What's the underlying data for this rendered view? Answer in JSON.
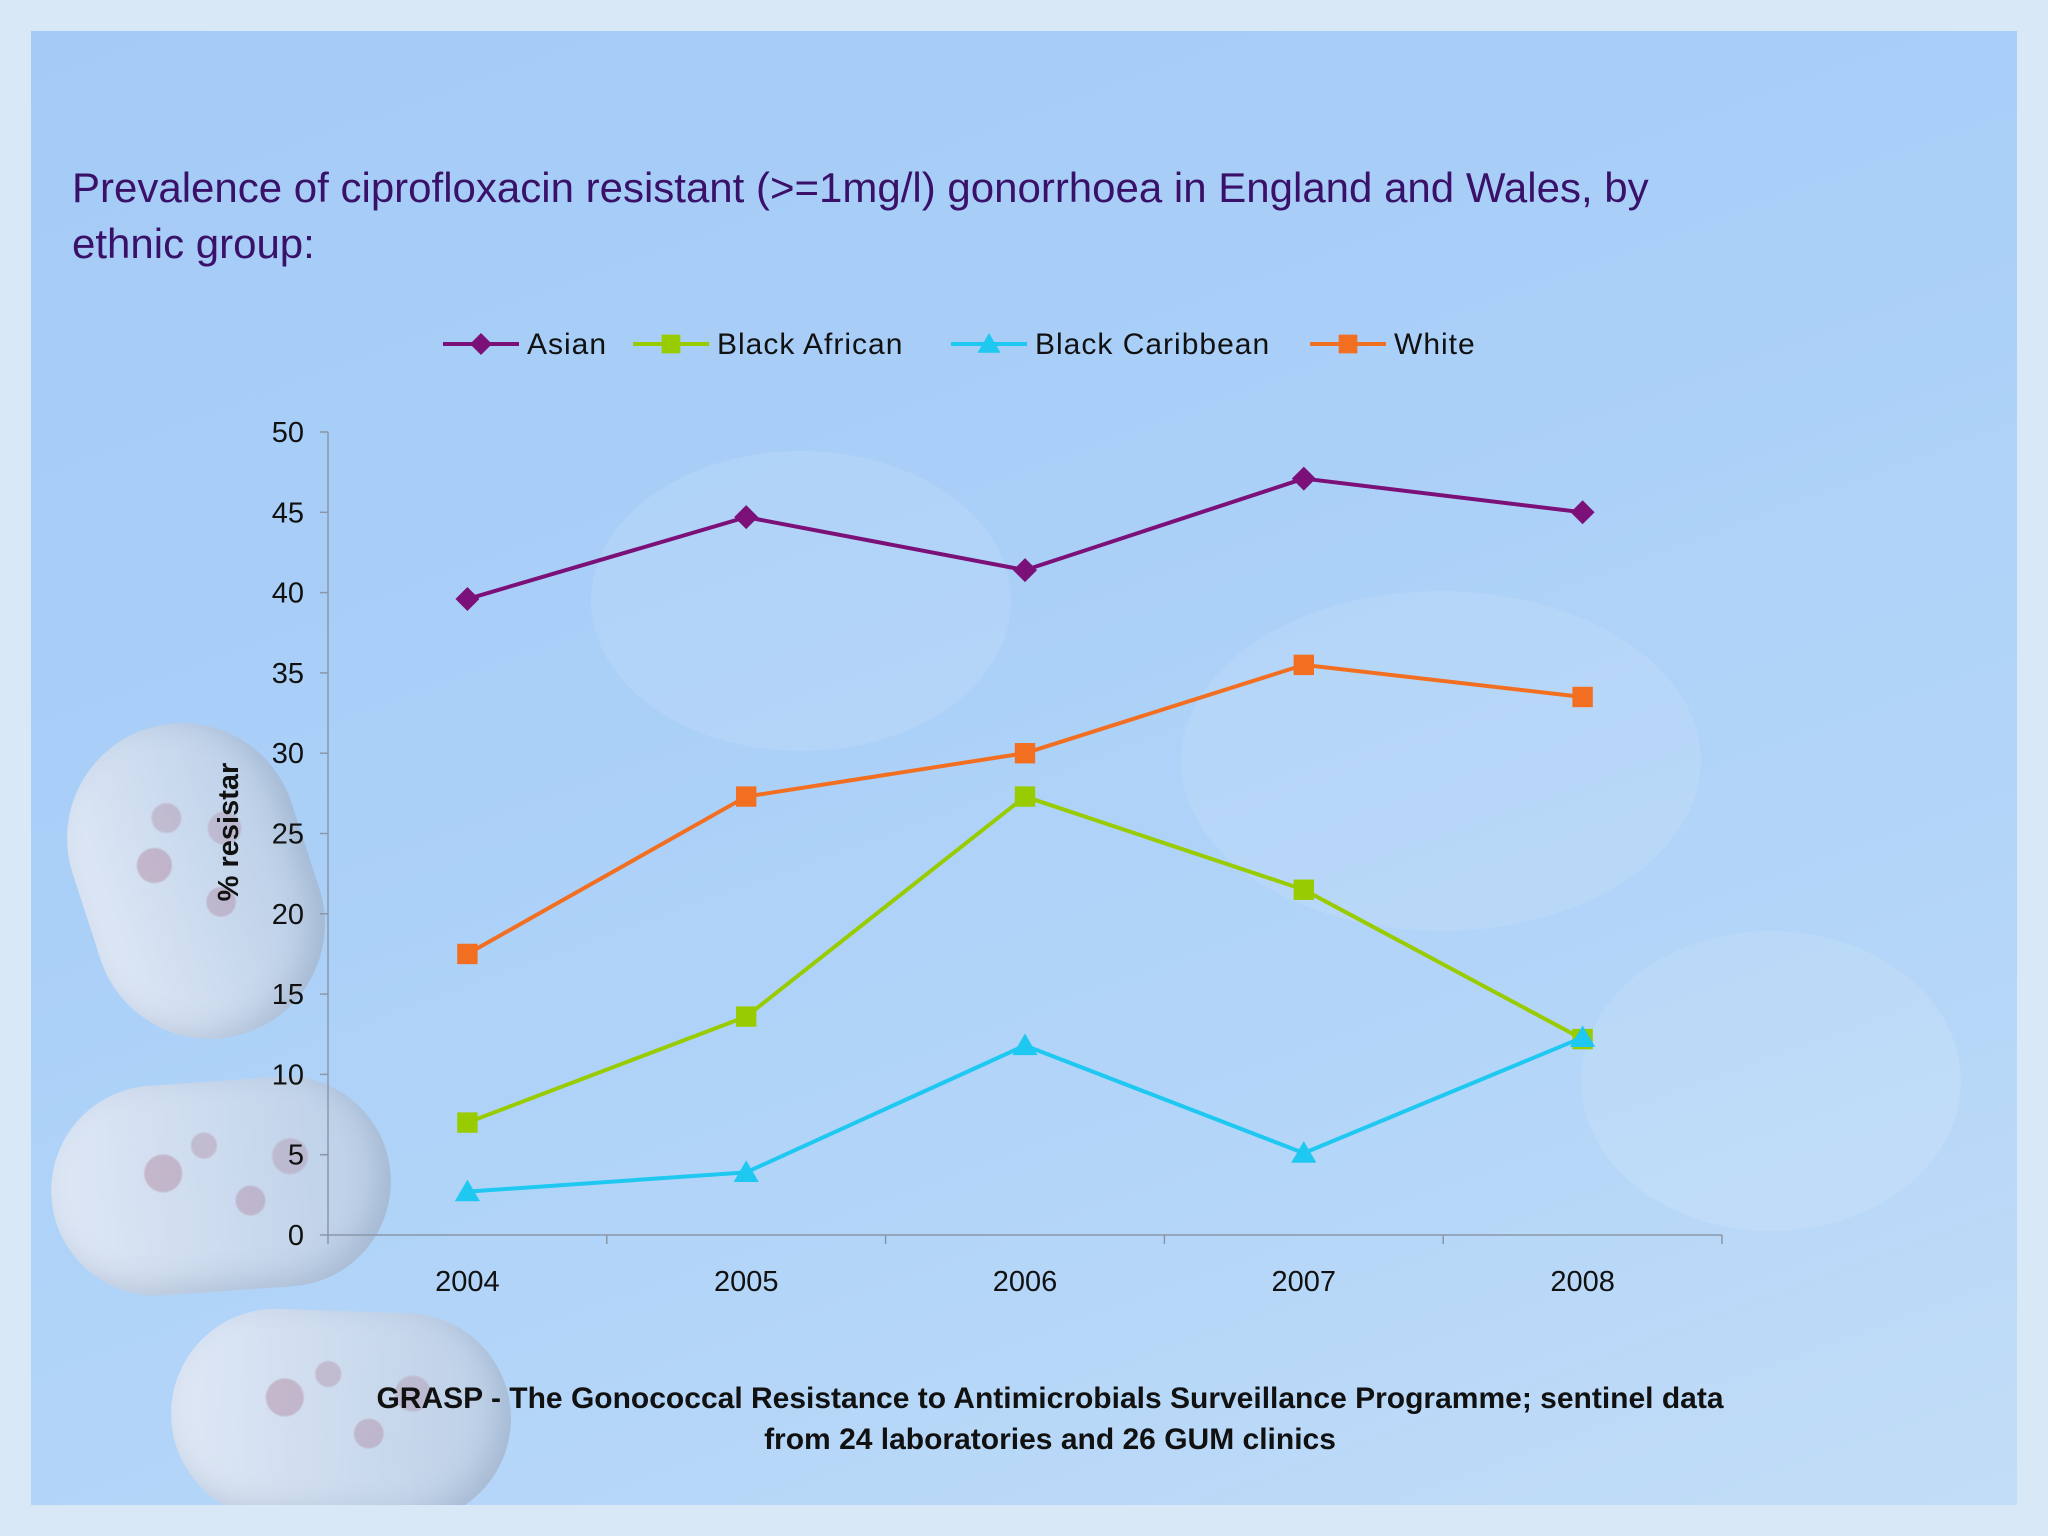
{
  "title": "Prevalence of ciprofloxacin resistant (>=1mg/l) gonorrhoea in England and Wales, by ethnic group:",
  "footer": {
    "line1": "GRASP - The Gonococcal Resistance to Antimicrobials Surveillance Programme; sentinel data",
    "line2": "from 24 laboratories and 26 GUM clinics"
  },
  "chart_data": {
    "type": "line",
    "title": "",
    "xlabel": "",
    "ylabel": "% resistar",
    "categories": [
      "2004",
      "2005",
      "2006",
      "2007",
      "2008"
    ],
    "ylim": [
      0,
      50
    ],
    "yticks": [
      0,
      5,
      10,
      15,
      20,
      25,
      30,
      35,
      40,
      45,
      50
    ],
    "grid": false,
    "legend": "top",
    "series": [
      {
        "name": "Asian",
        "values": [
          39.6,
          44.7,
          41.4,
          47.1,
          45.0
        ],
        "color": "#7b1079",
        "marker": "diamond"
      },
      {
        "name": "Black African",
        "values": [
          7.0,
          13.6,
          27.3,
          21.5,
          12.2
        ],
        "color": "#99cc00",
        "marker": "square"
      },
      {
        "name": "Black Caribbean",
        "values": [
          2.7,
          3.9,
          11.8,
          5.1,
          12.3
        ],
        "color": "#1ec8f0",
        "marker": "triangle"
      },
      {
        "name": "White",
        "values": [
          17.5,
          27.3,
          30.0,
          35.5,
          33.5
        ],
        "color": "#f26f22",
        "marker": "square"
      }
    ]
  }
}
